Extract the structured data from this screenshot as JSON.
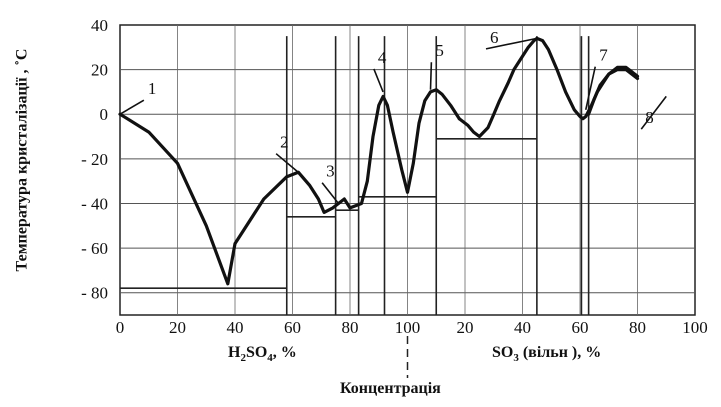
{
  "chart_data": {
    "type": "line",
    "title": "",
    "ylabel_main": "Температура кристалізації",
    "ylabel_unit": "˚С",
    "xlabel": "Концентрація",
    "segments": [
      {
        "label_main": "H",
        "label_sub": "2",
        "label_rest": "SO",
        "label_sub2": "4",
        "label_unit": ", %",
        "range": [
          0,
          100
        ],
        "ticks": [
          "0",
          "20",
          "40",
          "60",
          "80",
          "100"
        ]
      },
      {
        "label_main": "SO",
        "label_sub": "3",
        "label_rest": " (вільн )",
        "label_sub2": "",
        "label_unit": ",  %",
        "range": [
          0,
          100
        ],
        "ticks": [
          "20",
          "40",
          "60",
          "80",
          "100"
        ]
      }
    ],
    "ylim": [
      -90,
      40
    ],
    "yticks": [
      "40",
      "20",
      "0",
      "- 20",
      "- 40",
      "- 60",
      "- 80"
    ],
    "grid": true,
    "series": [
      {
        "points": [
          [
            0,
            0
          ],
          [
            10,
            -8
          ],
          [
            20,
            -22
          ],
          [
            30,
            -50
          ],
          [
            37.5,
            -76
          ],
          [
            40,
            -58
          ],
          [
            50,
            -38
          ],
          [
            58,
            -28
          ],
          [
            62,
            -26
          ],
          [
            66,
            -32
          ],
          [
            69,
            -38
          ],
          [
            71,
            -44
          ],
          [
            74,
            -42
          ],
          [
            78,
            -38
          ],
          [
            80,
            -42
          ],
          [
            84,
            -40
          ],
          [
            86,
            -30
          ],
          [
            88,
            -10
          ],
          [
            90,
            4
          ],
          [
            91.5,
            8
          ],
          [
            93,
            4
          ],
          [
            95,
            -8
          ],
          [
            98,
            -25
          ],
          [
            100,
            -35
          ],
          [
            102,
            -22
          ],
          [
            104,
            -4
          ],
          [
            106,
            6
          ],
          [
            108,
            10
          ],
          [
            110,
            11
          ],
          [
            112,
            9
          ],
          [
            115,
            4
          ],
          [
            118,
            -2
          ]
        ]
      },
      {
        "points": [
          [
            118,
            -2
          ],
          [
            121,
            -5
          ],
          [
            123,
            -8
          ],
          [
            125,
            -10
          ],
          [
            128,
            -6
          ],
          [
            130,
            0
          ],
          [
            132,
            6
          ],
          [
            135,
            14
          ],
          [
            137,
            20
          ],
          [
            140,
            26
          ],
          [
            142,
            30
          ],
          [
            144,
            33
          ],
          [
            145,
            34
          ],
          [
            147,
            33
          ],
          [
            149,
            29
          ],
          [
            152,
            20
          ],
          [
            155,
            10
          ],
          [
            158,
            2
          ],
          [
            160,
            -1
          ],
          [
            161,
            -2
          ],
          [
            162,
            -1
          ],
          [
            164,
            4
          ],
          [
            166,
            10
          ],
          [
            168,
            14
          ],
          [
            170,
            18
          ],
          [
            173,
            21
          ],
          [
            176,
            21
          ],
          [
            178,
            19
          ],
          [
            180,
            17
          ]
        ]
      },
      {
        "points": [
          [
            163,
            0
          ],
          [
            165,
            7
          ],
          [
            167,
            13
          ],
          [
            170,
            18
          ],
          [
            173,
            20
          ],
          [
            176,
            20
          ],
          [
            178,
            18
          ],
          [
            180,
            16
          ]
        ]
      }
    ],
    "phase_lines": [
      {
        "x_from": 0,
        "x_to": 58,
        "y": -78
      },
      {
        "x_from": 58,
        "x_to": 75,
        "y": -46
      },
      {
        "x_from": 75,
        "x_to": 83,
        "y": -43
      },
      {
        "x_from": 83,
        "x_to": 110,
        "y": -37
      },
      {
        "x_from": 110,
        "x_to": 145,
        "y": -11
      }
    ],
    "vertical_lines": [
      58,
      75,
      83,
      92,
      110,
      145,
      160.5,
      163
    ],
    "annotations": [
      {
        "text": "1",
        "x": 9,
        "y": 9,
        "target": [
          0,
          0
        ]
      },
      {
        "text": "2",
        "x": 55,
        "y": -15,
        "target": [
          62,
          -26
        ]
      },
      {
        "text": "3",
        "x": 71,
        "y": -28,
        "target": [
          76,
          -40
        ]
      },
      {
        "text": "4",
        "x": 89,
        "y": 23,
        "target": [
          91.5,
          10
        ]
      },
      {
        "text": "5",
        "x": 109,
        "y": 26,
        "target": [
          108,
          11
        ]
      },
      {
        "text": "6",
        "x": 128,
        "y": 32,
        "target": [
          145,
          34
        ]
      },
      {
        "text": "7",
        "x": 166,
        "y": 24,
        "target": [
          162,
          2
        ]
      },
      {
        "text": "8",
        "x": 182,
        "y": -4,
        "target": [
          190,
          8
        ]
      }
    ],
    "divider_x": 100
  }
}
